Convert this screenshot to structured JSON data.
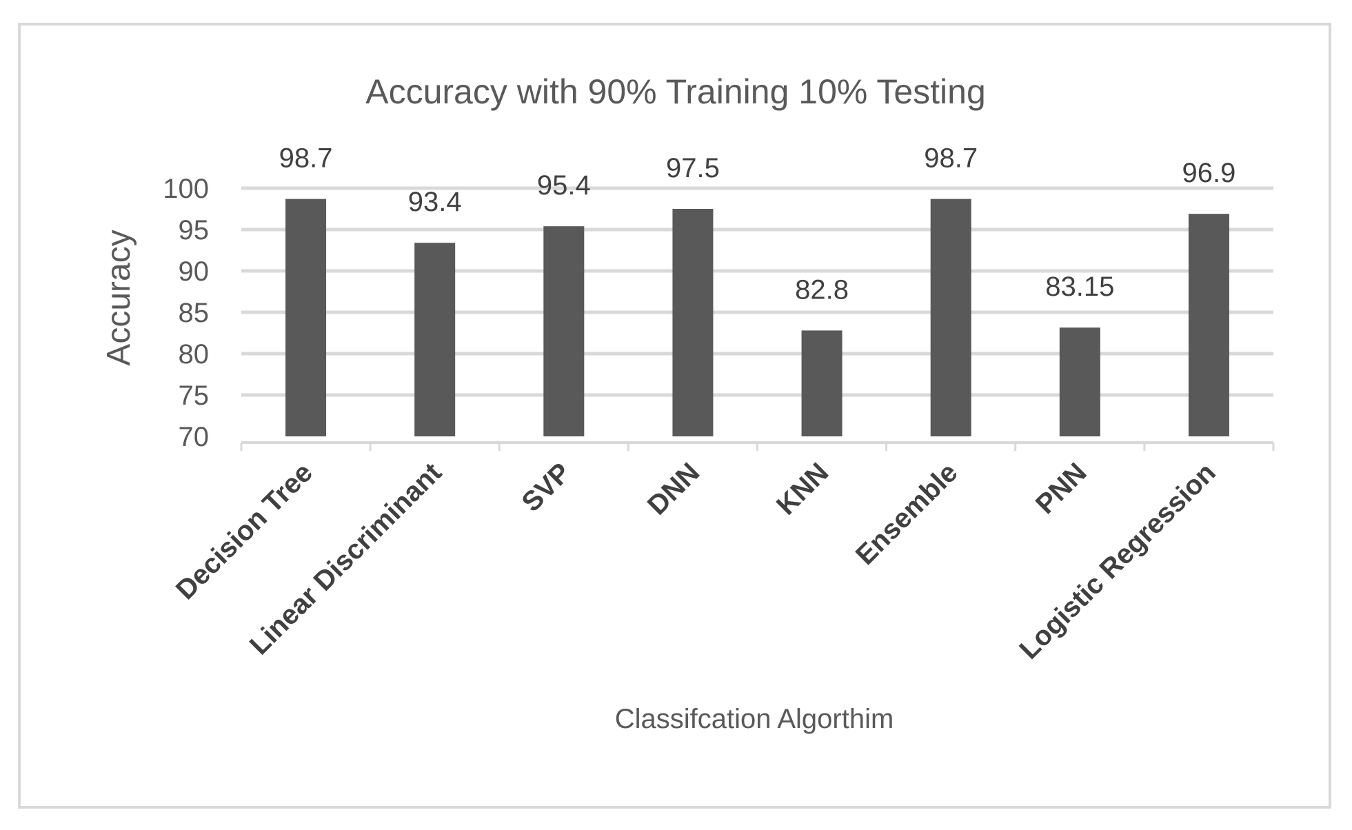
{
  "chart_data": {
    "type": "bar",
    "title": "Accuracy with 90% Training 10% Testing",
    "xlabel": "Classifcation Algorthim",
    "ylabel": "Accuracy",
    "categories": [
      "Decision Tree",
      "Linear Discriminant",
      "SVP",
      "DNN",
      "KNN",
      "Ensemble",
      "PNN",
      "Logistic Regression"
    ],
    "values": [
      98.7,
      93.4,
      95.4,
      97.5,
      82.8,
      98.7,
      83.15,
      96.9
    ],
    "data_labels": [
      "98.7",
      "93.4",
      "95.4",
      "97.5",
      "82.8",
      "98.7",
      "83.15",
      "96.9"
    ],
    "ylim": [
      70,
      100
    ],
    "yticks": [
      70,
      75,
      80,
      85,
      90,
      95,
      100
    ],
    "grid": true,
    "legend": "none",
    "colors": {
      "bar": "#595959",
      "grid": "#d9d9d9",
      "text": "#595959",
      "frame": "#d9d9d9"
    }
  }
}
